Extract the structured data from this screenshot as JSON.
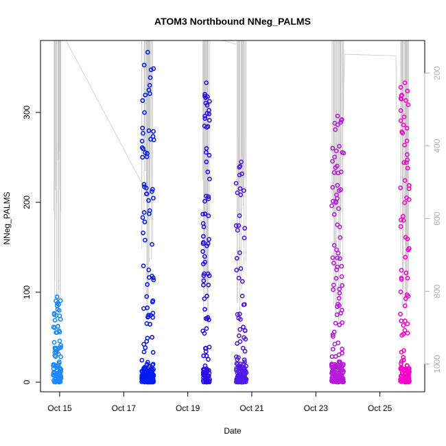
{
  "chart_data": {
    "type": "scatter",
    "title": "ATOM3 Northbound NNeg_PALMS",
    "xlabel": "Date",
    "ylabel": "NNeg_PALMS",
    "x_ticks": [
      "Oct 15",
      "Oct 17",
      "Oct 19",
      "Oct 21",
      "Oct 23",
      "Oct 25"
    ],
    "y_ticks": [
      0,
      100,
      200,
      300
    ],
    "ylim": [
      0,
      380
    ],
    "xlim_days": [
      14.3,
      26.3
    ],
    "right_axis": {
      "ticks": [
        200,
        400,
        600,
        800,
        1000
      ],
      "range": [
        1050,
        110
      ],
      "color": "#b0b0b0",
      "series_color": "#c8c8c8",
      "description": "pressure profile overlay (inverted)"
    },
    "grid": false,
    "color_gradient": [
      "#1E90FF",
      "#0000EE",
      "#8A2BE2",
      "#FF00CC"
    ],
    "flights": [
      {
        "center": 14.82,
        "width": 0.25,
        "max": 95,
        "count": 90,
        "dense": 30
      },
      {
        "center": 17.65,
        "width": 0.38,
        "max": 367,
        "count": 180,
        "dense": 100
      },
      {
        "center": 19.48,
        "width": 0.22,
        "max": 333,
        "count": 110,
        "dense": 35
      },
      {
        "center": 20.57,
        "width": 0.32,
        "max": 245,
        "count": 140,
        "dense": 90
      },
      {
        "center": 23.58,
        "width": 0.38,
        "max": 296,
        "count": 190,
        "dense": 100
      },
      {
        "center": 25.68,
        "width": 0.28,
        "max": 333,
        "count": 130,
        "dense": 60
      }
    ]
  }
}
